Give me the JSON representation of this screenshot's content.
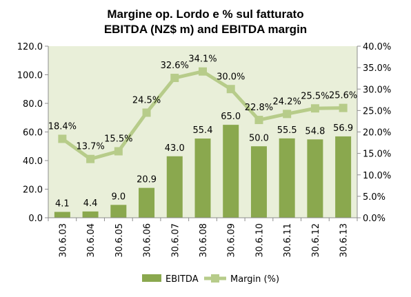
{
  "chart_data": {
    "type": "bar",
    "title": "Margine op. Lordo e % sul fatturato",
    "subtitle": "EBITDA (NZ$ m) and EBITDA margin",
    "categories": [
      "30.6.03",
      "30.6.04",
      "30.6.05",
      "30.6.06",
      "30.6.07",
      "30.6.08",
      "30.6.09",
      "30.6.10",
      "30.6.11",
      "30.6.12",
      "30.6.13"
    ],
    "series": [
      {
        "name": "EBITDA",
        "type": "bar",
        "axis": "left",
        "color": "#8aa84e",
        "values": [
          4.1,
          4.4,
          9.0,
          20.9,
          43.0,
          55.4,
          65.0,
          50.0,
          55.5,
          54.8,
          56.9
        ],
        "labels": [
          "4.1",
          "4.4",
          "9.0",
          "20.9",
          "43.0",
          "55.4",
          "65.0",
          "50.0",
          "55.5",
          "54.8",
          "56.9"
        ]
      },
      {
        "name": "Margin (%)",
        "type": "line",
        "axis": "right",
        "color": "#b7cc8a",
        "values": [
          18.4,
          13.7,
          15.5,
          24.5,
          32.6,
          34.1,
          30.0,
          22.8,
          24.2,
          25.5,
          25.6
        ],
        "labels": [
          "18.4%",
          "13.7%",
          "15.5%",
          "24.5%",
          "32.6%",
          "34.1%",
          "30.0%",
          "22.8%",
          "24.2%",
          "25.5%",
          "25.6%"
        ]
      }
    ],
    "y_left": {
      "min": 0,
      "max": 120,
      "ticks": [
        "0.0",
        "20.0",
        "40.0",
        "60.0",
        "80.0",
        "100.0",
        "120.0"
      ]
    },
    "y_right": {
      "min": 0,
      "max": 40,
      "ticks": [
        "0.0%",
        "5.0%",
        "10.0%",
        "15.0%",
        "20.0%",
        "25.0%",
        "30.0%",
        "35.0%",
        "40.0%"
      ]
    },
    "plot_background": "#e9efd9",
    "grid": false,
    "legend": "bottom"
  }
}
